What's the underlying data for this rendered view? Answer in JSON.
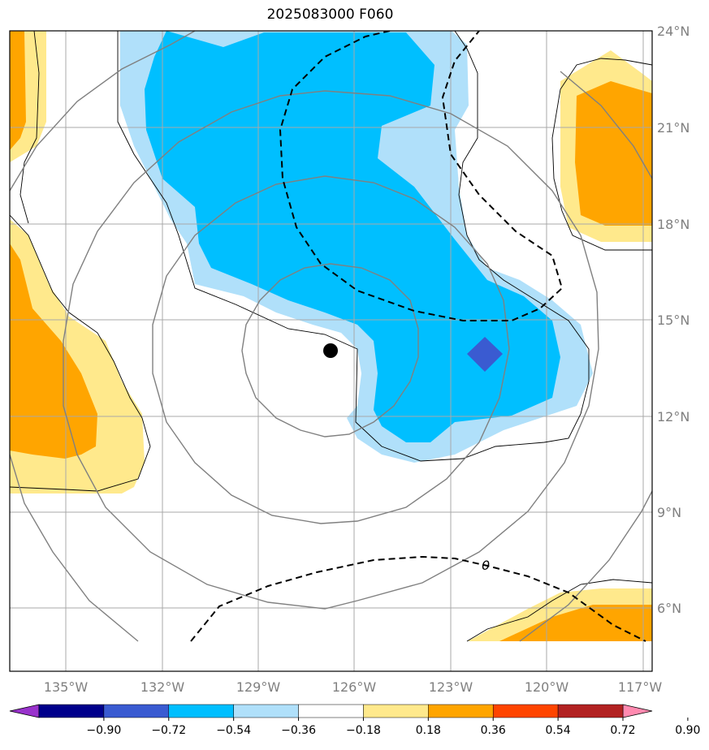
{
  "title": "2025083000 F060",
  "map": {
    "lon_labels": [
      "135°W",
      "132°W",
      "129°W",
      "126°W",
      "123°W",
      "120°W",
      "117°W"
    ],
    "lat_labels": [
      "24°N",
      "21°N",
      "18°N",
      "15°N",
      "12°N",
      "9°N",
      "6°N"
    ],
    "contour_label": "0",
    "storm_center": {
      "lon": "126.8°W",
      "lat": "14.0°N"
    },
    "negative_marker_color": "#3a5bd1",
    "colors": {
      "n090": "#9932cc",
      "n072": "#00008b",
      "n054": "#3a5bd1",
      "n036": "#00bfff",
      "n018": "#b0e0fa",
      "p018": "#ffe98c",
      "p036": "#ffa500",
      "p054": "#ff4500",
      "p072": "#b22222",
      "p090": "#ff8ab0"
    }
  },
  "colorbar": {
    "ticks": [
      "−0.90",
      "−0.72",
      "−0.54",
      "−0.36",
      "−0.18",
      "0.18",
      "0.36",
      "0.54",
      "0.72",
      "0.90"
    ],
    "colors": [
      "#9932cc",
      "#00008b",
      "#3a5bd1",
      "#00bfff",
      "#b0e0fa",
      "#ffffff",
      "#ffe98c",
      "#ffa500",
      "#ff4500",
      "#b22222",
      "#ff8ab0"
    ]
  }
}
